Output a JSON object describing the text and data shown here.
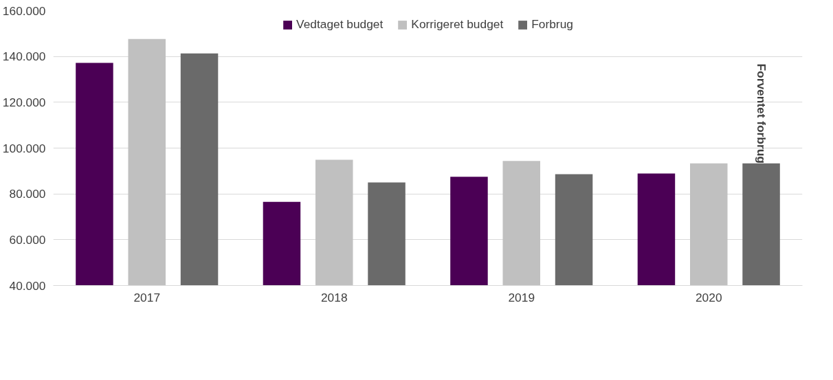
{
  "chart_data": {
    "type": "bar",
    "categories": [
      "2017",
      "2018",
      "2019",
      "2020"
    ],
    "series": [
      {
        "name": "Vedtaget budget",
        "color": "#4b0055",
        "values": [
          137200,
          76500,
          87500,
          88900
        ]
      },
      {
        "name": "Korrigeret budget",
        "color": "#c0c0c0",
        "values": [
          147600,
          94900,
          94400,
          93300
        ]
      },
      {
        "name": "Forbrug",
        "color": "#6a6a6a",
        "values": [
          141300,
          85000,
          88600,
          93300
        ]
      }
    ],
    "ylim": [
      40000,
      160000
    ],
    "yticks": [
      {
        "value": 40000,
        "label": "40.000"
      },
      {
        "value": 60000,
        "label": "60.000"
      },
      {
        "value": 80000,
        "label": "80.000"
      },
      {
        "value": 100000,
        "label": "100.000"
      },
      {
        "value": 120000,
        "label": "120.000"
      },
      {
        "value": 140000,
        "label": "140.000"
      },
      {
        "value": 160000,
        "label": "160.000"
      }
    ],
    "grid": "y",
    "legend": "top",
    "annotations": [
      "Forventet forbrug"
    ]
  }
}
